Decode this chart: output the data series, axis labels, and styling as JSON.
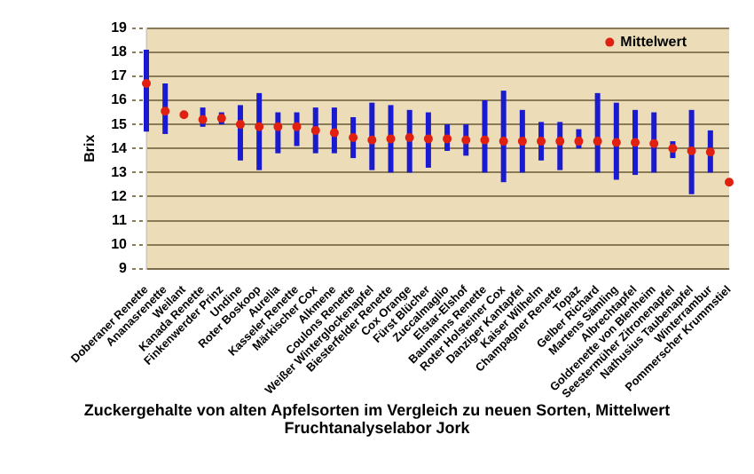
{
  "chart_data": {
    "type": "scatter",
    "title": "Zuckergehalte von alten Apfelsorten im Vergleich zu neuen Sorten, Mittelwert",
    "annotations": [
      "Fruchtanalyselabor Jork"
    ],
    "ylabel": "Brix",
    "categories": [
      "Doberaner Renette",
      "Ananasrenette",
      "Weilant",
      "Kanada Renette",
      "Finkenwerder Prinz",
      "Undine",
      "Roter Boskoop",
      "Aurelia",
      "Kasseler Renette",
      "Märkischer Cox",
      "Alkmene",
      "Coulons Renette",
      "Weißer Winterglockenapfel",
      "Biesterfelder Renette",
      "Cox Orange",
      "Fürst Blücher",
      "Zuccalmaglio",
      "Elstar-Elshof",
      "Baumanns Renette",
      "Roter Holsteiner Cox",
      "Danziger Kantapfel",
      "Kaiser Wilhelm",
      "Champagner Renette",
      "Topaz",
      "Gelber Richard",
      "Martens Sämling",
      "Albrechtapfel",
      "Goldrenette von Blenheim",
      "Seestermüher Zitronenapfel",
      "Nathusius Taubenapfel",
      "Winterrambur",
      "Pommerscher Krummstiel"
    ],
    "series": [
      {
        "name": "Mittelwert",
        "color": "#e02010",
        "values": [
          16.7,
          15.55,
          15.4,
          15.2,
          15.25,
          15.0,
          14.9,
          14.9,
          14.9,
          14.75,
          14.65,
          14.45,
          14.35,
          14.4,
          14.45,
          14.4,
          14.4,
          14.35,
          14.35,
          14.3,
          14.3,
          14.3,
          14.3,
          14.3,
          14.3,
          14.25,
          14.25,
          14.2,
          14.0,
          13.9,
          13.85,
          12.6
        ],
        "errors": [
          [
            14.7,
            18.1
          ],
          [
            14.6,
            16.7
          ],
          null,
          [
            14.9,
            15.7
          ],
          [
            15.0,
            15.5
          ],
          [
            13.5,
            15.8
          ],
          [
            13.1,
            16.3
          ],
          [
            13.8,
            15.5
          ],
          [
            14.1,
            15.5
          ],
          [
            13.8,
            15.7
          ],
          [
            13.8,
            15.7
          ],
          [
            13.6,
            15.3
          ],
          [
            13.1,
            15.9
          ],
          [
            13.0,
            15.8
          ],
          [
            13.0,
            15.6
          ],
          [
            13.2,
            15.5
          ],
          [
            13.9,
            15.0
          ],
          [
            13.7,
            15.0
          ],
          [
            13.0,
            16.0
          ],
          [
            12.6,
            16.4
          ],
          [
            13.0,
            15.6
          ],
          [
            13.5,
            15.1
          ],
          [
            13.1,
            15.1
          ],
          [
            14.0,
            14.8
          ],
          [
            13.0,
            16.3
          ],
          [
            12.7,
            15.9
          ],
          [
            12.9,
            15.6
          ],
          [
            13.0,
            15.5
          ],
          [
            13.6,
            14.3
          ],
          [
            12.1,
            15.6
          ],
          [
            13.0,
            14.75
          ],
          null
        ]
      }
    ],
    "ylim": [
      9,
      19
    ],
    "yticks": [
      9,
      10,
      11,
      12,
      13,
      14,
      15,
      16,
      17,
      18,
      19
    ],
    "grid": "y",
    "legend": "top right",
    "marker": "circle"
  }
}
